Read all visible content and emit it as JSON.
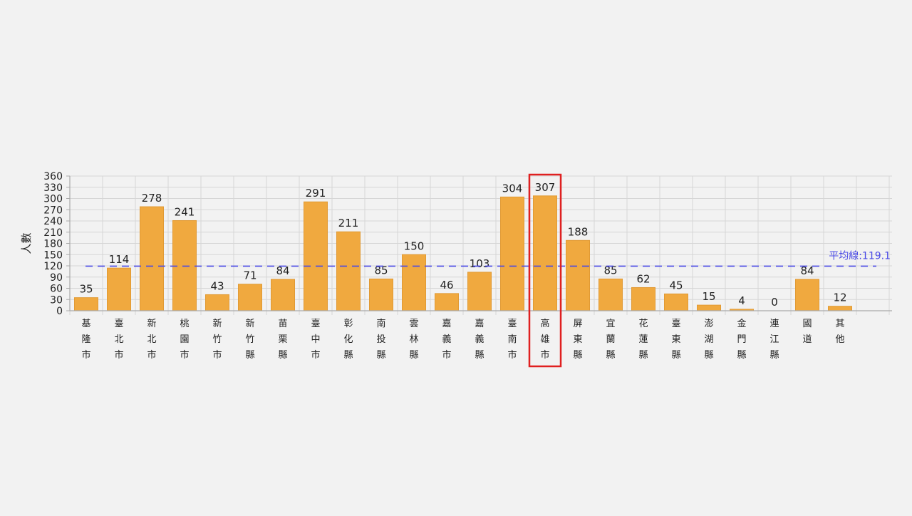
{
  "chart_data": {
    "type": "bar",
    "ylabel": "人數",
    "ylim": [
      0,
      360
    ],
    "yticks": [
      0,
      30,
      60,
      90,
      120,
      150,
      180,
      210,
      240,
      270,
      300,
      330,
      360
    ],
    "grid": true,
    "categories": [
      "基隆市",
      "臺北市",
      "新北市",
      "桃園市",
      "新竹市",
      "新竹縣",
      "苗栗縣",
      "臺中市",
      "彰化縣",
      "南投縣",
      "雲林縣",
      "嘉義市",
      "嘉義縣",
      "臺南市",
      "高雄市",
      "屏東縣",
      "宜蘭縣",
      "花蓮縣",
      "臺東縣",
      "澎湖縣",
      "金門縣",
      "連江縣",
      "國道",
      "其他"
    ],
    "values": [
      35,
      114,
      278,
      241,
      43,
      71,
      84,
      291,
      211,
      85,
      150,
      46,
      103,
      304,
      307,
      188,
      85,
      62,
      45,
      15,
      4,
      0,
      84,
      12
    ],
    "reference_line": {
      "label": "平均線:119.1",
      "value": 119.1
    },
    "highlight_category": "高雄市"
  },
  "colors": {
    "bar": "#f0a93f",
    "bar_stroke": "#e19a34",
    "average_line": "#4a4ae6",
    "highlight_box": "#e02020",
    "grid": "#d6d6d6",
    "axis": "#aaaaaa",
    "text": "#222222",
    "background": "#f2f2f2"
  }
}
